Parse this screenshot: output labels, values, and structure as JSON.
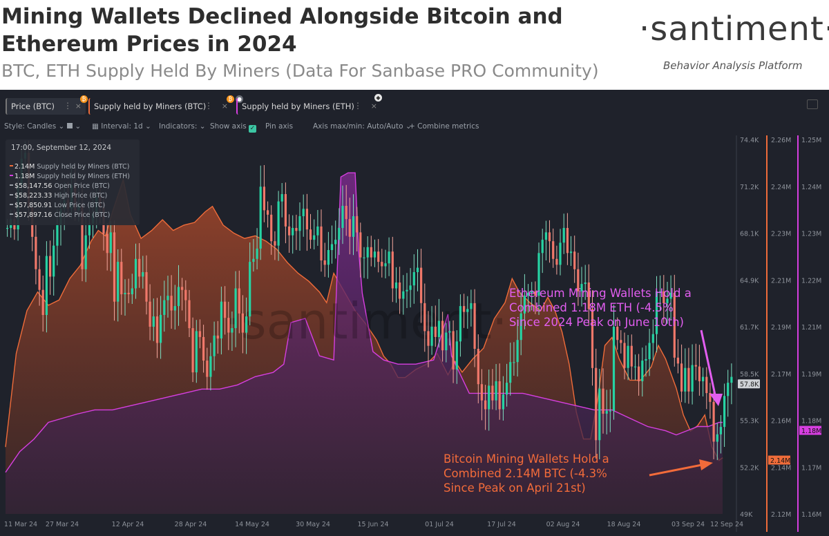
{
  "header": {
    "title": "Mining Wallets Declined Alongside Bitcoin and Ethereum Prices in 2024",
    "subtitle": "BTC, ETH Supply Held By Miners (Data For Sanbase PRO Community)",
    "brand": "·santiment·",
    "brand_tagline": "Behavior Analysis Platform"
  },
  "tabs": [
    {
      "label": "Price (BTC)",
      "color": "#f7931a"
    },
    {
      "label": "Supply held by Miners (BTC)",
      "color": "#ef6c3a"
    },
    {
      "label": "Supply held by Miners (ETH)",
      "color": "#d63fe0"
    }
  ],
  "toolbar": {
    "style": "Style: Candles",
    "interval": "Interval: 1d",
    "indicators": "Indicators:",
    "show_axis": "Show axis",
    "pin_axis": "Pin axis",
    "axis_maxmin": "Axis max/min: Auto/Auto",
    "combine": "Combine metrics"
  },
  "legend": {
    "date": "17:00, September 12, 2024",
    "rows": [
      {
        "value": "2.14M",
        "label": "Supply held by Miners (BTC)",
        "color": "#ef6c3a"
      },
      {
        "value": "1.18M",
        "label": "Supply held by Miners (ETH)",
        "color": "#d63fe0"
      },
      {
        "value": "$58,147.56",
        "label": "Open Price (BTC)",
        "color": "#9aa0a8"
      },
      {
        "value": "$58,223.33",
        "label": "High Price (BTC)",
        "color": "#9aa0a8"
      },
      {
        "value": "$57,850.91",
        "label": "Low Price (BTC)",
        "color": "#9aa0a8"
      },
      {
        "value": "$57,897.16",
        "label": "Close Price (BTC)",
        "color": "#9aa0a8"
      }
    ]
  },
  "annotations": {
    "eth": [
      "Ethereum Mining Wallets Hold a",
      "Combined 1.18M ETH (-4.5%",
      "Since 2024 Peak on June 10th)"
    ],
    "btc": [
      "Bitcoin Mining Wallets Hold a",
      "Combined 2.14M BTC (-4.3%",
      "Since Peak on April 21st)"
    ]
  },
  "watermark": "·santiment·",
  "chart_data": {
    "type": "line",
    "x_ticks": [
      "11 Mar 24",
      "27 Mar 24",
      "12 Apr 24",
      "28 Apr 24",
      "14 May 24",
      "30 May 24",
      "15 Jun 24",
      "01 Jul 24",
      "17 Jul 24",
      "02 Aug 24",
      "18 Aug 24",
      "03 Sep 24",
      "12 Sep 24"
    ],
    "price_axis": {
      "ticks": [
        "74.4K",
        "71.2K",
        "68.1K",
        "64.9K",
        "61.7K",
        "58.5K",
        "55.3K",
        "52.2K",
        "49K"
      ],
      "current": "57.8K",
      "range": [
        49000,
        74400
      ]
    },
    "btc_supply_axis": {
      "ticks": [
        "2.26M",
        "2.24M",
        "2.23M",
        "2.21M",
        "2.19M",
        "2.17M",
        "2.16M",
        "2.14M",
        "2.12M"
      ],
      "current": "2.14M",
      "range": [
        2.12,
        2.26
      ]
    },
    "eth_supply_axis": {
      "ticks": [
        "1.25M",
        "1.24M",
        "1.23M",
        "1.22M",
        "1.21M",
        "1.19M",
        "1.18M",
        "1.17M",
        "1.16M"
      ],
      "current": "1.18M",
      "range": [
        1.16,
        1.25
      ]
    },
    "series": [
      {
        "name": "Supply held by Miners (BTC)",
        "color": "#ef6c3a",
        "unit": "M",
        "points": [
          [
            0,
            2.145
          ],
          [
            3,
            2.18
          ],
          [
            6,
            2.196
          ],
          [
            9,
            2.203
          ],
          [
            12,
            2.198
          ],
          [
            15,
            2.2
          ],
          [
            18,
            2.208
          ],
          [
            21,
            2.213
          ],
          [
            24,
            2.222
          ],
          [
            26,
            2.226
          ],
          [
            28,
            2.224
          ],
          [
            30,
            2.233
          ],
          [
            33,
            2.245
          ],
          [
            35,
            2.232
          ],
          [
            38,
            2.223
          ],
          [
            41,
            2.226
          ],
          [
            44,
            2.23
          ],
          [
            47,
            2.226
          ],
          [
            50,
            2.228
          ],
          [
            53,
            2.229
          ],
          [
            56,
            2.233
          ],
          [
            58,
            2.235
          ],
          [
            61,
            2.228
          ],
          [
            64,
            2.225
          ],
          [
            67,
            2.223
          ],
          [
            70,
            2.224
          ],
          [
            73,
            2.222
          ],
          [
            76,
            2.219
          ],
          [
            79,
            2.214
          ],
          [
            82,
            2.21
          ],
          [
            85,
            2.207
          ],
          [
            88,
            2.203
          ],
          [
            90,
            2.199
          ],
          [
            92,
            2.21
          ],
          [
            95,
            2.203
          ],
          [
            98,
            2.196
          ],
          [
            101,
            2.191
          ],
          [
            104,
            2.185
          ],
          [
            106,
            2.179
          ],
          [
            108,
            2.176
          ],
          [
            110,
            2.171
          ],
          [
            112,
            2.171
          ],
          [
            115,
            2.174
          ],
          [
            118,
            2.176
          ],
          [
            121,
            2.18
          ],
          [
            124,
            2.172
          ],
          [
            126,
            2.177
          ],
          [
            128,
            2.173
          ],
          [
            131,
            2.178
          ],
          [
            134,
            2.182
          ],
          [
            137,
            2.193
          ],
          [
            140,
            2.199
          ],
          [
            142,
            2.208
          ],
          [
            144,
            2.203
          ],
          [
            147,
            2.199
          ],
          [
            150,
            2.196
          ],
          [
            152,
            2.201
          ],
          [
            154,
            2.196
          ],
          [
            156,
            2.188
          ],
          [
            158,
            2.176
          ],
          [
            160,
            2.158
          ],
          [
            162,
            2.148
          ],
          [
            164,
            2.148
          ],
          [
            166,
            2.163
          ],
          [
            168,
            2.183
          ],
          [
            170,
            2.186
          ],
          [
            172,
            2.178
          ],
          [
            175,
            2.17
          ],
          [
            178,
            2.17
          ],
          [
            181,
            2.175
          ],
          [
            183,
            2.183
          ],
          [
            185,
            2.178
          ],
          [
            188,
            2.167
          ],
          [
            190,
            2.157
          ],
          [
            192,
            2.151
          ],
          [
            194,
            2.153
          ],
          [
            196,
            2.157
          ],
          [
            198,
            2.145
          ],
          [
            200,
            2.14
          ],
          [
            201,
            2.141
          ]
        ]
      },
      {
        "name": "Supply held by Miners (ETH)",
        "color": "#d63fe0",
        "unit": "M",
        "points": [
          [
            0,
            1.17
          ],
          [
            4,
            1.175
          ],
          [
            8,
            1.178
          ],
          [
            12,
            1.182
          ],
          [
            16,
            1.183
          ],
          [
            20,
            1.184
          ],
          [
            25,
            1.185
          ],
          [
            30,
            1.185
          ],
          [
            35,
            1.186
          ],
          [
            40,
            1.187
          ],
          [
            45,
            1.188
          ],
          [
            50,
            1.189
          ],
          [
            55,
            1.19
          ],
          [
            60,
            1.19
          ],
          [
            65,
            1.191
          ],
          [
            70,
            1.193
          ],
          [
            75,
            1.194
          ],
          [
            78,
            1.196
          ],
          [
            80,
            1.206
          ],
          [
            84,
            1.207
          ],
          [
            88,
            1.198
          ],
          [
            92,
            1.197
          ],
          [
            94,
            1.241
          ],
          [
            96,
            1.242
          ],
          [
            98,
            1.242
          ],
          [
            99,
            1.223
          ],
          [
            100,
            1.213
          ],
          [
            103,
            1.199
          ],
          [
            106,
            1.197
          ],
          [
            110,
            1.196
          ],
          [
            115,
            1.196
          ],
          [
            120,
            1.197
          ],
          [
            124,
            1.208
          ],
          [
            125,
            1.198
          ],
          [
            130,
            1.189
          ],
          [
            135,
            1.189
          ],
          [
            140,
            1.189
          ],
          [
            145,
            1.189
          ],
          [
            150,
            1.188
          ],
          [
            155,
            1.187
          ],
          [
            160,
            1.186
          ],
          [
            165,
            1.185
          ],
          [
            170,
            1.185
          ],
          [
            175,
            1.183
          ],
          [
            180,
            1.181
          ],
          [
            185,
            1.18
          ],
          [
            188,
            1.179
          ],
          [
            191,
            1.18
          ],
          [
            194,
            1.181
          ],
          [
            197,
            1.181
          ],
          [
            200,
            1.182
          ],
          [
            201,
            1.182
          ]
        ]
      },
      {
        "name": "Price (BTC)",
        "color": "#26d3a3",
        "unit": "USD",
        "close": [
          68400,
          69000,
          68300,
          71300,
          73100,
          73500,
          69800,
          67800,
          65600,
          64200,
          62500,
          66500,
          65100,
          67200,
          68600,
          69700,
          70300,
          69700,
          71300,
          69600,
          70000,
          65600,
          67900,
          68700,
          69400,
          70500,
          69800,
          68000,
          66700,
          68100,
          63400,
          66100,
          63900,
          64000,
          63900,
          64300,
          66300,
          65100,
          65400,
          63400,
          61700,
          62400,
          60600,
          62500,
          63500,
          63800,
          62800,
          63100,
          64400,
          64200,
          63500,
          61600,
          58600,
          61400,
          61000,
          59400,
          58300,
          59700,
          61100,
          60900,
          63400,
          62300,
          61300,
          61600,
          64300,
          62600,
          61300,
          62400,
          66100,
          66300,
          67000,
          71200,
          69600,
          69300,
          67500,
          67200,
          70200,
          70700,
          68500,
          67900,
          68400,
          68200,
          69200,
          69700,
          68300,
          67600,
          67900,
          68500,
          66200,
          65900,
          66900,
          67300,
          67600,
          68400,
          69900,
          69000,
          67800,
          69200,
          68100,
          66400,
          66400,
          67100,
          66400,
          66800,
          66100,
          65800,
          66000,
          66800,
          64300,
          64700,
          63600,
          64100,
          64200,
          64500,
          65400,
          65700,
          63300,
          61400,
          60400,
          61700,
          61000,
          62100,
          60100,
          61300,
          61400,
          58800,
          60700,
          63100,
          62700,
          62900,
          63300,
          60200,
          57800,
          56700,
          56100,
          57700,
          56700,
          58000,
          56100,
          57100,
          57900,
          59300,
          59300,
          60800,
          62600,
          63800,
          64000,
          64100,
          63800,
          66700,
          67600,
          68100,
          67500,
          66300,
          65900,
          67400,
          68400,
          66700,
          66800,
          65600,
          64100,
          64600,
          64700,
          62900,
          58900,
          54000,
          57500,
          55800,
          56000,
          56000,
          61700,
          60800,
          60600,
          58900,
          60400,
          59000,
          59000,
          58000,
          59400,
          59500,
          60600,
          61200,
          64100,
          64100,
          63300,
          63600,
          64000,
          59600,
          59200,
          57300,
          58900,
          57300,
          59100,
          59000,
          58000,
          58300,
          57200,
          56600,
          53900,
          54400,
          54900,
          57000,
          57900,
          58300,
          58100,
          57900
        ]
      }
    ]
  }
}
